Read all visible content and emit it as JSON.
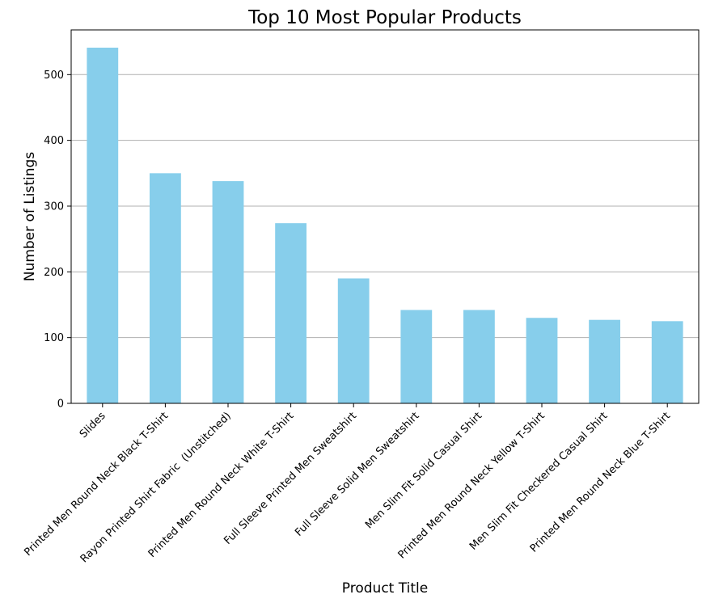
{
  "chart_data": {
    "type": "bar",
    "title": "Top 10 Most Popular Products",
    "xlabel": "Product Title",
    "ylabel": "Number of Listings",
    "categories": [
      "Slides",
      "Printed Men Round Neck Black T-Shirt",
      "Rayon Printed Shirt Fabric  (Unstitched)",
      "Printed Men Round Neck White T-Shirt",
      "Full Sleeve Printed Men Sweatshirt",
      "Full Sleeve Solid Men Sweatshirt",
      "Men Slim Fit Solid Casual Shirt",
      "Printed Men Round Neck Yellow T-Shirt",
      "Men Slim Fit Checkered Casual Shirt",
      "Printed Men Round Neck Blue T-Shirt"
    ],
    "values": [
      541,
      350,
      338,
      274,
      190,
      142,
      142,
      130,
      127,
      125
    ],
    "ylim": [
      0,
      568
    ],
    "yticks": [
      0,
      100,
      200,
      300,
      400,
      500
    ],
    "grid": "y-axis",
    "legend": "none",
    "colors": {
      "bar": "#87ceeb",
      "grid": "#b0b0b0",
      "axis": "#000000"
    }
  }
}
